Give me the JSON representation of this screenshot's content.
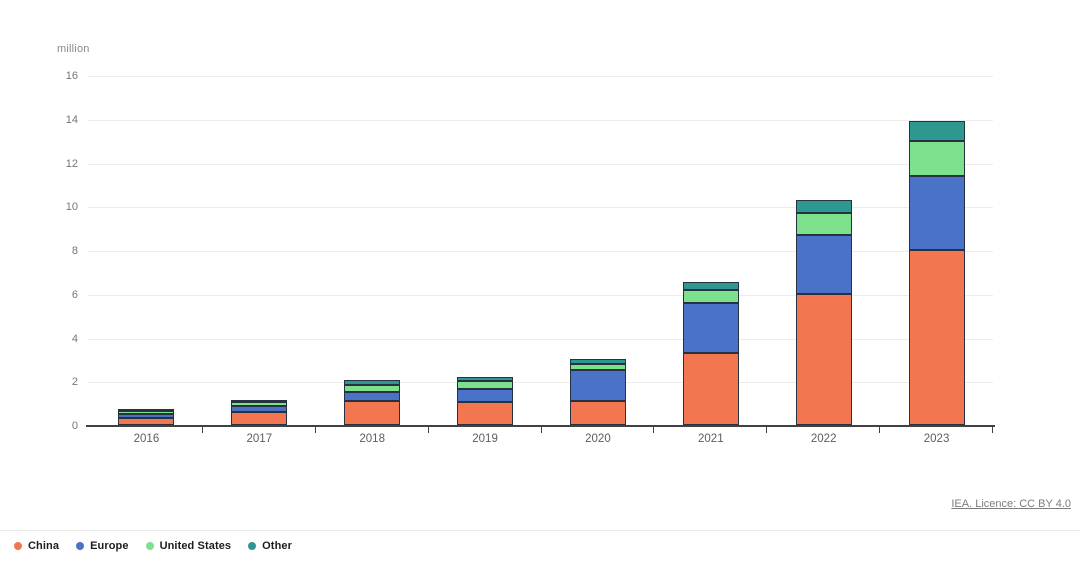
{
  "chart_data": {
    "type": "bar",
    "stacked": true,
    "title": "",
    "unit_label": "million",
    "xlabel": "",
    "ylabel": "million",
    "categories": [
      "2016",
      "2017",
      "2018",
      "2019",
      "2020",
      "2021",
      "2022",
      "2023"
    ],
    "series": [
      {
        "name": "China",
        "color": "#f2764f",
        "values": [
          0.3,
          0.6,
          1.1,
          1.05,
          1.1,
          3.3,
          6.0,
          8.0
        ]
      },
      {
        "name": "Europe",
        "color": "#4a72c7",
        "values": [
          0.2,
          0.25,
          0.4,
          0.6,
          1.4,
          2.3,
          2.7,
          3.4
        ]
      },
      {
        "name": "United States",
        "color": "#7de08d",
        "values": [
          0.15,
          0.2,
          0.35,
          0.35,
          0.3,
          0.55,
          1.0,
          1.6
        ]
      },
      {
        "name": "Other",
        "color": "#2d988f",
        "values": [
          0.05,
          0.1,
          0.2,
          0.2,
          0.2,
          0.4,
          0.6,
          0.9
        ]
      }
    ],
    "totals": [
      0.7,
      1.15,
      2.05,
      2.2,
      3.0,
      6.55,
      10.3,
      13.9
    ],
    "ylim": [
      0,
      16
    ],
    "y_ticks": [
      0,
      2,
      4,
      6,
      8,
      10,
      12,
      14,
      16
    ],
    "grid": true,
    "legend_position": "bottom-left",
    "bar_outline_color": "#273240"
  },
  "footer": {
    "license_label": "IEA. Licence: CC BY 4.0"
  }
}
